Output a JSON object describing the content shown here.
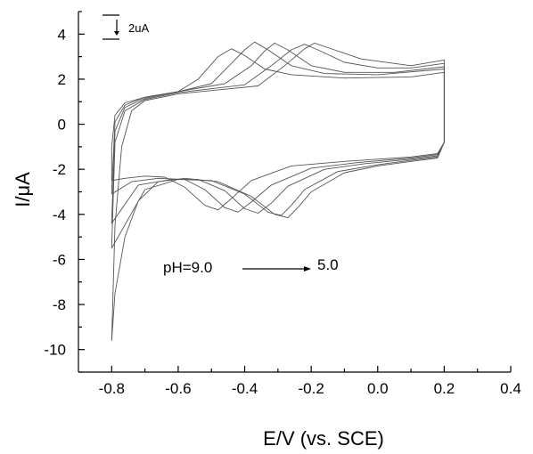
{
  "chart_data": {
    "type": "line",
    "title": "",
    "xlabel": "E/V (vs. SCE)",
    "ylabel": "I/μA",
    "xlim": [
      -0.9,
      0.4
    ],
    "ylim": [
      -11,
      5
    ],
    "x_ticks": [
      -0.8,
      -0.6,
      -0.4,
      -0.2,
      0.0,
      0.2,
      0.4
    ],
    "x_tick_labels": [
      "-0.8",
      "-0.6",
      "-0.4",
      "-0.2",
      "0.0",
      "0.2",
      "0.4"
    ],
    "y_ticks": [
      4,
      2,
      0,
      -2,
      -4,
      -6,
      -8,
      -10
    ],
    "y_tick_labels": [
      "4",
      "2",
      "0",
      "-2",
      "-4",
      "-6",
      "-8",
      "-10"
    ],
    "grid": false,
    "scale_bar_label": "2uA",
    "annotation_start": "pH=9.0",
    "annotation_end": "5.0",
    "line_color": "#555555",
    "series": [
      {
        "anodic": [
          [
            -0.8,
            -1.0
          ],
          [
            -0.79,
            0.4
          ],
          [
            -0.76,
            0.95
          ],
          [
            -0.7,
            1.2
          ],
          [
            -0.6,
            1.45
          ],
          [
            -0.54,
            2.0
          ],
          [
            -0.48,
            3.0
          ],
          [
            -0.44,
            3.35
          ],
          [
            -0.4,
            3.05
          ],
          [
            -0.34,
            2.45
          ],
          [
            -0.26,
            2.2
          ],
          [
            -0.1,
            2.05
          ],
          [
            0.1,
            2.1
          ],
          [
            0.2,
            2.3
          ]
        ],
        "cathodic": [
          [
            0.2,
            2.3
          ],
          [
            0.2,
            -0.8
          ],
          [
            0.18,
            -1.3
          ],
          [
            0.1,
            -1.45
          ],
          [
            -0.1,
            -1.65
          ],
          [
            -0.26,
            -1.85
          ],
          [
            -0.38,
            -2.5
          ],
          [
            -0.44,
            -3.3
          ],
          [
            -0.48,
            -3.8
          ],
          [
            -0.52,
            -3.6
          ],
          [
            -0.58,
            -2.8
          ],
          [
            -0.64,
            -2.35
          ],
          [
            -0.7,
            -2.3
          ],
          [
            -0.76,
            -2.4
          ],
          [
            -0.8,
            -2.5
          ]
        ]
      },
      {
        "anodic": [
          [
            -0.8,
            -3.0
          ],
          [
            -0.79,
            0.1
          ],
          [
            -0.76,
            0.85
          ],
          [
            -0.7,
            1.2
          ],
          [
            -0.6,
            1.45
          ],
          [
            -0.5,
            1.8
          ],
          [
            -0.44,
            2.7
          ],
          [
            -0.4,
            3.3
          ],
          [
            -0.37,
            3.65
          ],
          [
            -0.33,
            3.3
          ],
          [
            -0.26,
            2.6
          ],
          [
            -0.16,
            2.25
          ],
          [
            0.0,
            2.2
          ],
          [
            0.2,
            2.45
          ]
        ],
        "cathodic": [
          [
            0.2,
            2.45
          ],
          [
            0.2,
            -0.8
          ],
          [
            0.18,
            -1.35
          ],
          [
            0.1,
            -1.5
          ],
          [
            -0.06,
            -1.7
          ],
          [
            -0.2,
            -1.95
          ],
          [
            -0.32,
            -2.7
          ],
          [
            -0.38,
            -3.45
          ],
          [
            -0.42,
            -3.9
          ],
          [
            -0.46,
            -3.7
          ],
          [
            -0.52,
            -2.9
          ],
          [
            -0.58,
            -2.45
          ],
          [
            -0.66,
            -2.4
          ],
          [
            -0.74,
            -2.55
          ],
          [
            -0.8,
            -3.1
          ]
        ]
      },
      {
        "anodic": [
          [
            -0.8,
            -4.3
          ],
          [
            -0.79,
            -0.3
          ],
          [
            -0.76,
            0.75
          ],
          [
            -0.7,
            1.15
          ],
          [
            -0.6,
            1.45
          ],
          [
            -0.46,
            1.8
          ],
          [
            -0.38,
            2.6
          ],
          [
            -0.34,
            3.25
          ],
          [
            -0.31,
            3.6
          ],
          [
            -0.27,
            3.3
          ],
          [
            -0.2,
            2.6
          ],
          [
            -0.1,
            2.3
          ],
          [
            0.05,
            2.3
          ],
          [
            0.2,
            2.55
          ]
        ],
        "cathodic": [
          [
            0.2,
            2.55
          ],
          [
            0.2,
            -0.8
          ],
          [
            0.18,
            -1.4
          ],
          [
            0.1,
            -1.55
          ],
          [
            -0.04,
            -1.75
          ],
          [
            -0.16,
            -2.0
          ],
          [
            -0.27,
            -2.75
          ],
          [
            -0.32,
            -3.5
          ],
          [
            -0.36,
            -3.95
          ],
          [
            -0.4,
            -3.75
          ],
          [
            -0.46,
            -2.95
          ],
          [
            -0.54,
            -2.45
          ],
          [
            -0.62,
            -2.45
          ],
          [
            -0.72,
            -2.7
          ],
          [
            -0.8,
            -4.4
          ]
        ]
      },
      {
        "anodic": [
          [
            -0.8,
            -5.5
          ],
          [
            -0.79,
            -0.8
          ],
          [
            -0.76,
            0.6
          ],
          [
            -0.7,
            1.1
          ],
          [
            -0.6,
            1.4
          ],
          [
            -0.4,
            1.75
          ],
          [
            -0.32,
            2.6
          ],
          [
            -0.26,
            3.3
          ],
          [
            -0.22,
            3.55
          ],
          [
            -0.18,
            3.3
          ],
          [
            -0.1,
            2.75
          ],
          [
            0.0,
            2.5
          ],
          [
            0.1,
            2.5
          ],
          [
            0.2,
            2.7
          ]
        ],
        "cathodic": [
          [
            0.2,
            2.7
          ],
          [
            0.2,
            -0.8
          ],
          [
            0.18,
            -1.45
          ],
          [
            0.1,
            -1.6
          ],
          [
            0.0,
            -1.8
          ],
          [
            -0.12,
            -2.1
          ],
          [
            -0.22,
            -2.9
          ],
          [
            -0.26,
            -3.6
          ],
          [
            -0.29,
            -4.05
          ],
          [
            -0.33,
            -3.9
          ],
          [
            -0.4,
            -3.1
          ],
          [
            -0.5,
            -2.5
          ],
          [
            -0.6,
            -2.45
          ],
          [
            -0.7,
            -2.9
          ],
          [
            -0.8,
            -5.5
          ]
        ]
      },
      {
        "anodic": [
          [
            -0.8,
            -9.6
          ],
          [
            -0.79,
            -4.5
          ],
          [
            -0.77,
            -1.0
          ],
          [
            -0.74,
            0.6
          ],
          [
            -0.7,
            1.05
          ],
          [
            -0.6,
            1.35
          ],
          [
            -0.36,
            1.7
          ],
          [
            -0.28,
            2.6
          ],
          [
            -0.22,
            3.35
          ],
          [
            -0.19,
            3.6
          ],
          [
            -0.15,
            3.4
          ],
          [
            -0.05,
            2.9
          ],
          [
            0.1,
            2.6
          ],
          [
            0.2,
            2.85
          ]
        ],
        "cathodic": [
          [
            0.2,
            2.85
          ],
          [
            0.2,
            -0.8
          ],
          [
            0.18,
            -1.5
          ],
          [
            0.1,
            -1.65
          ],
          [
            0.0,
            -1.85
          ],
          [
            -0.1,
            -2.15
          ],
          [
            -0.2,
            -3.0
          ],
          [
            -0.24,
            -3.7
          ],
          [
            -0.27,
            -4.15
          ],
          [
            -0.31,
            -4.0
          ],
          [
            -0.38,
            -3.2
          ],
          [
            -0.48,
            -2.55
          ],
          [
            -0.58,
            -2.4
          ],
          [
            -0.66,
            -2.55
          ],
          [
            -0.72,
            -3.4
          ],
          [
            -0.76,
            -5.0
          ],
          [
            -0.79,
            -7.5
          ],
          [
            -0.8,
            -9.6
          ]
        ]
      }
    ]
  }
}
